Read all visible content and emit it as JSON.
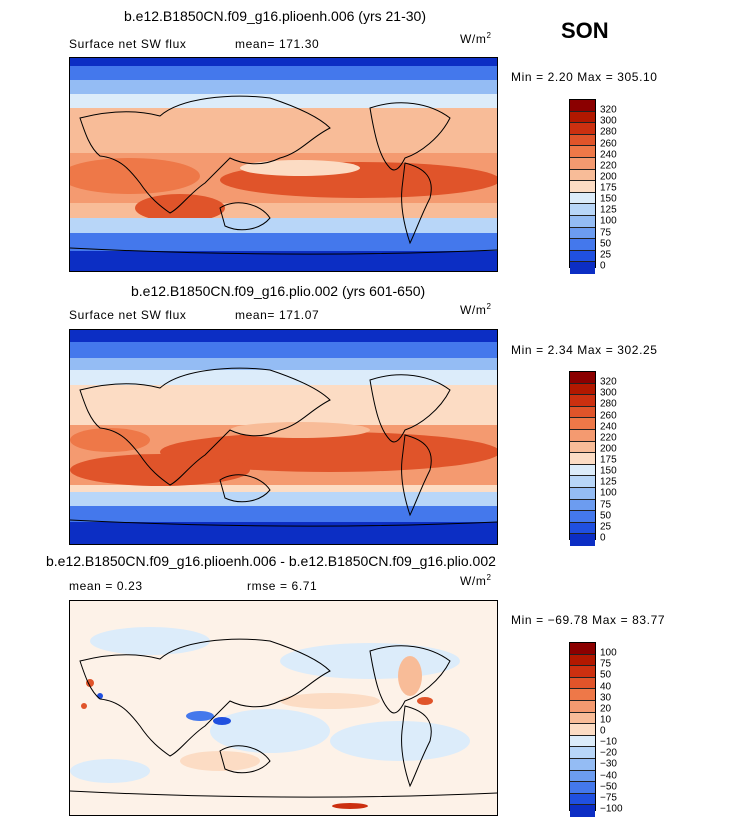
{
  "season": "SON",
  "panels": [
    {
      "title": "b.e12.B1850CN.f09_g16.plioenh.006 (yrs 21-30)",
      "subtitle_left": "Surface net SW flux",
      "stat": "mean= 171.30",
      "units_base": "W/m",
      "units_exp": "2",
      "minmax": "Min =   2.20 Max = 305.10",
      "colorbar": {
        "colors": [
          "#8b0000",
          "#b21800",
          "#cc3010",
          "#e0542a",
          "#ee7848",
          "#f49a70",
          "#f8bc98",
          "#fcdcc4",
          "#fdf2e8",
          "#dcecfa",
          "#b8d6f8",
          "#94bcf4",
          "#6c9cf0",
          "#4478ec",
          "#2050e0",
          "#0c2ec4",
          "#00108c"
        ],
        "ticks": [
          "320",
          "300",
          "280",
          "260",
          "240",
          "220",
          "200",
          "175",
          "150",
          "125",
          "100",
          "75",
          "50",
          "25",
          "0"
        ]
      }
    },
    {
      "title": "b.e12.B1850CN.f09_g16.plio.002 (yrs 601-650)",
      "subtitle_left": "Surface net SW flux",
      "stat": "mean= 171.07",
      "units_base": "W/m",
      "units_exp": "2",
      "minmax": "Min =   2.34 Max = 302.25",
      "colorbar": {
        "colors": [
          "#8b0000",
          "#b21800",
          "#cc3010",
          "#e0542a",
          "#ee7848",
          "#f49a70",
          "#f8bc98",
          "#fcdcc4",
          "#fdf2e8",
          "#dcecfa",
          "#b8d6f8",
          "#94bcf4",
          "#6c9cf0",
          "#4478ec",
          "#2050e0",
          "#0c2ec4",
          "#00108c"
        ],
        "ticks": [
          "320",
          "300",
          "280",
          "260",
          "240",
          "220",
          "200",
          "175",
          "150",
          "125",
          "100",
          "75",
          "50",
          "25",
          "0"
        ]
      }
    },
    {
      "title": "b.e12.B1850CN.f09_g16.plioenh.006 - b.e12.B1850CN.f09_g16.plio.002",
      "stat_left": "mean =    0.23",
      "stat_right": "rmse =    6.71",
      "units_base": "W/m",
      "units_exp": "2",
      "minmax": "Min = −69.78 Max =  83.77",
      "colorbar": {
        "colors": [
          "#8b0000",
          "#b21800",
          "#cc3010",
          "#e0542a",
          "#ee7848",
          "#f49a70",
          "#f8bc98",
          "#fcdcc4",
          "#fdf2e8",
          "#dcecfa",
          "#b8d6f8",
          "#94bcf4",
          "#6c9cf0",
          "#4478ec",
          "#2050e0",
          "#0c2ec4",
          "#00108c"
        ],
        "ticks": [
          "100",
          "75",
          "50",
          "40",
          "30",
          "20",
          "10",
          "0",
          "−10",
          "−20",
          "−30",
          "−40",
          "−50",
          "−75",
          "−100"
        ]
      }
    }
  ]
}
